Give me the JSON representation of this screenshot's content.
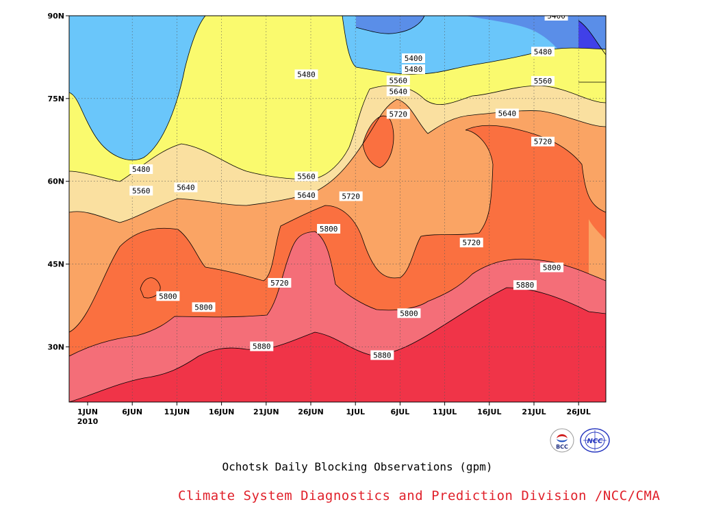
{
  "chart_data": {
    "type": "heatmap",
    "title": "Ochotsk Daily Blocking Observations (gpm)",
    "x_ticks": [
      "1JUN",
      "6JUN",
      "11JUN",
      "16JUN",
      "21JUN",
      "26JUN",
      "1JUL",
      "6JUL",
      "11JUL",
      "16JUL",
      "21JUL",
      "26JUL"
    ],
    "x_year_label": "2010",
    "x_day_range": [
      0,
      60
    ],
    "y_ticks": [
      "90N",
      "75N",
      "60N",
      "45N",
      "30N"
    ],
    "y_tick_values": [
      90,
      75,
      60,
      45,
      30
    ],
    "y_range": [
      20,
      90
    ],
    "grid": true,
    "contour_levels": [
      5400,
      5480,
      5560,
      5640,
      5720,
      5800,
      5880
    ],
    "fill_colors": [
      "#4040e8",
      "#5a8ee8",
      "#6ac6fa",
      "#fafa6e",
      "#fae0a0",
      "#faa464",
      "#fa7040",
      "#f46e78",
      "#f03448"
    ],
    "contour_labels": [
      {
        "text": "5400",
        "day": 52.5,
        "lat": 90
      },
      {
        "text": "5400",
        "day": 36.5,
        "lat": 82.3
      },
      {
        "text": "5480",
        "day": 36.5,
        "lat": 80.3
      },
      {
        "text": "5480",
        "day": 24.5,
        "lat": 79.4
      },
      {
        "text": "5480",
        "day": 51.0,
        "lat": 83.5
      },
      {
        "text": "5480",
        "day": 6.0,
        "lat": 62.2
      },
      {
        "text": "5560",
        "day": 34.8,
        "lat": 78.3
      },
      {
        "text": "5560",
        "day": 24.5,
        "lat": 60.9
      },
      {
        "text": "5560",
        "day": 6.0,
        "lat": 58.3
      },
      {
        "text": "5560",
        "day": 51.0,
        "lat": 78.2
      },
      {
        "text": "5640",
        "day": 34.8,
        "lat": 76.3
      },
      {
        "text": "5640",
        "day": 11.0,
        "lat": 58.9
      },
      {
        "text": "5640",
        "day": 24.5,
        "lat": 57.5
      },
      {
        "text": "5640",
        "day": 47.0,
        "lat": 72.3
      },
      {
        "text": "5720",
        "day": 34.8,
        "lat": 72.2
      },
      {
        "text": "5720",
        "day": 29.5,
        "lat": 57.3
      },
      {
        "text": "5720",
        "day": 43.0,
        "lat": 48.9
      },
      {
        "text": "5720",
        "day": 51.0,
        "lat": 67.2
      },
      {
        "text": "5720",
        "day": 21.5,
        "lat": 41.6
      },
      {
        "text": "5800",
        "day": 27.0,
        "lat": 51.4
      },
      {
        "text": "5800",
        "day": 9.0,
        "lat": 39.2
      },
      {
        "text": "5800",
        "day": 13.0,
        "lat": 37.2
      },
      {
        "text": "5800",
        "day": 36.0,
        "lat": 36.1
      },
      {
        "text": "5800",
        "day": 52.0,
        "lat": 44.4
      },
      {
        "text": "5880",
        "day": 19.5,
        "lat": 30.1
      },
      {
        "text": "5880",
        "day": 33.0,
        "lat": 28.5
      },
      {
        "text": "5880",
        "day": 49.0,
        "lat": 41.2
      }
    ]
  },
  "footer": {
    "credit": "Climate System Diagnostics and Prediction Division /NCC/CMA",
    "logo_left_text": "BCC",
    "logo_right_text": "NCC"
  }
}
